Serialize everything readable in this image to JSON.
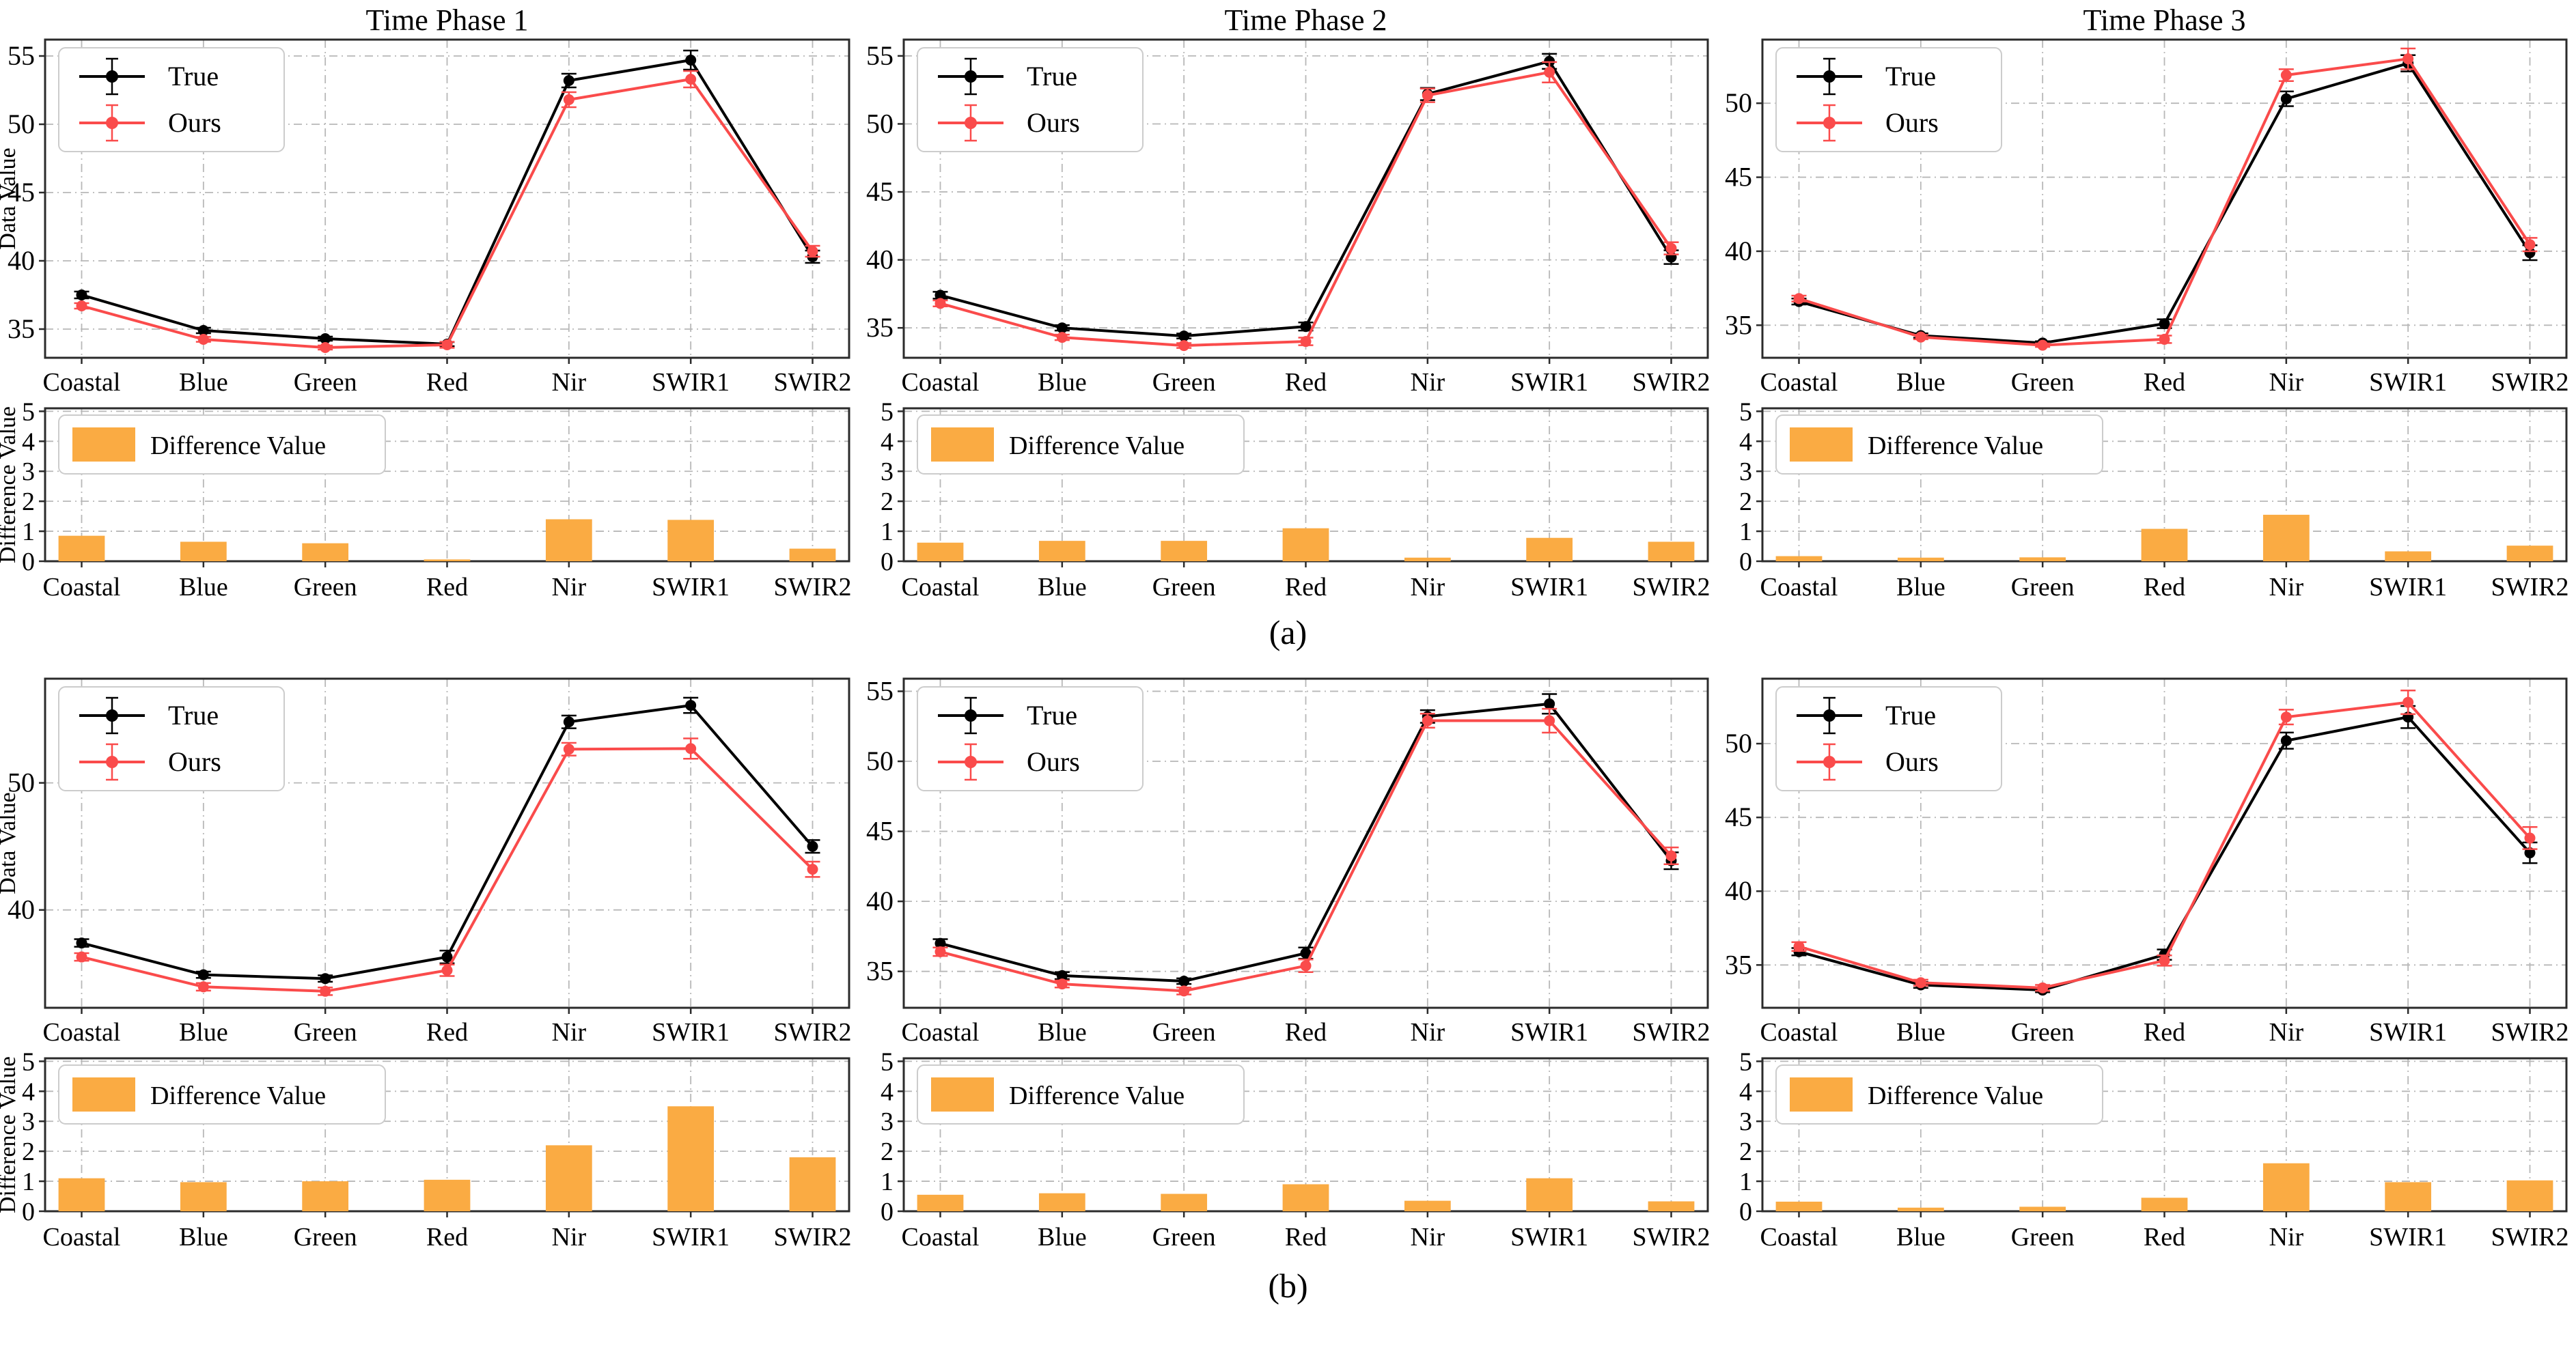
{
  "labels": {
    "data_value": "Data Value",
    "difference_value": "Difference Value",
    "legend_true": "True",
    "legend_ours": "Ours",
    "legend_diff": "Difference Value"
  },
  "colors": {
    "true_line": "#000000",
    "ours_line": "#fa4b4b",
    "bar": "#faab43",
    "grid": "#b8b8b8",
    "spine": "#2b2b2b"
  },
  "categories": [
    "Coastal",
    "Blue",
    "Green",
    "Red",
    "Nir",
    "SWIR1",
    "SWIR2"
  ],
  "chart_data": {
    "type": "multi-panel",
    "groups": [
      {
        "caption": "(a)",
        "panels": [
          {
            "title": "Time Phase 1",
            "line": {
              "type": "line",
              "ylim": [
                32.9,
                56.2
              ],
              "yticks": [
                35,
                40,
                45,
                50,
                55
              ],
              "series": [
                {
                  "name": "True",
                  "values": [
                    37.5,
                    34.9,
                    34.3,
                    33.9,
                    53.2,
                    54.7,
                    40.3
                  ],
                  "err": [
                    0.25,
                    0.2,
                    0.15,
                    0.15,
                    0.5,
                    0.7,
                    0.45
                  ]
                },
                {
                  "name": "Ours",
                  "values": [
                    36.7,
                    34.25,
                    33.65,
                    33.85,
                    51.8,
                    53.3,
                    40.7
                  ],
                  "err": [
                    0.2,
                    0.18,
                    0.15,
                    0.22,
                    0.55,
                    0.6,
                    0.4
                  ]
                }
              ]
            },
            "bar": {
              "type": "bar",
              "ylim": [
                0,
                5.1
              ],
              "yticks": [
                0,
                1,
                2,
                3,
                4,
                5
              ],
              "values": [
                0.85,
                0.65,
                0.6,
                0.06,
                1.4,
                1.38,
                0.42
              ]
            }
          },
          {
            "title": "Time Phase 2",
            "line": {
              "type": "line",
              "ylim": [
                32.8,
                56.2
              ],
              "yticks": [
                35,
                40,
                45,
                50,
                55
              ],
              "series": [
                {
                  "name": "True",
                  "values": [
                    37.4,
                    35.0,
                    34.4,
                    35.1,
                    52.2,
                    54.6,
                    40.2
                  ],
                  "err": [
                    0.25,
                    0.2,
                    0.18,
                    0.3,
                    0.45,
                    0.55,
                    0.5
                  ]
                },
                {
                  "name": "Ours",
                  "values": [
                    36.8,
                    34.3,
                    33.7,
                    34.0,
                    52.1,
                    53.8,
                    40.85
                  ],
                  "err": [
                    0.22,
                    0.2,
                    0.18,
                    0.28,
                    0.5,
                    0.75,
                    0.45
                  ]
                }
              ]
            },
            "bar": {
              "type": "bar",
              "ylim": [
                0,
                5.1
              ],
              "yticks": [
                0,
                1,
                2,
                3,
                4,
                5
              ],
              "values": [
                0.62,
                0.68,
                0.68,
                1.1,
                0.12,
                0.78,
                0.65
              ]
            }
          },
          {
            "title": "Time Phase 3",
            "line": {
              "type": "line",
              "ylim": [
                32.8,
                54.3
              ],
              "yticks": [
                35,
                40,
                45,
                50
              ],
              "series": [
                {
                  "name": "True",
                  "values": [
                    36.6,
                    34.3,
                    33.8,
                    35.1,
                    50.3,
                    52.7,
                    39.9
                  ],
                  "err": [
                    0.2,
                    0.15,
                    0.12,
                    0.3,
                    0.5,
                    0.55,
                    0.5
                  ]
                },
                {
                  "name": "Ours",
                  "values": [
                    36.8,
                    34.2,
                    33.65,
                    34.05,
                    51.9,
                    53.0,
                    40.45
                  ],
                  "err": [
                    0.2,
                    0.15,
                    0.12,
                    0.25,
                    0.4,
                    0.7,
                    0.45
                  ]
                }
              ]
            },
            "bar": {
              "type": "bar",
              "ylim": [
                0,
                5.1
              ],
              "yticks": [
                0,
                1,
                2,
                3,
                4,
                5
              ],
              "values": [
                0.17,
                0.12,
                0.13,
                1.08,
                1.55,
                0.33,
                0.52
              ]
            }
          }
        ]
      },
      {
        "caption": "(b)",
        "panels": [
          {
            "title": "",
            "line": {
              "type": "line",
              "ylim": [
                32.3,
                58.2
              ],
              "yticks": [
                40,
                50
              ],
              "series": [
                {
                  "name": "True",
                  "values": [
                    37.4,
                    34.9,
                    34.6,
                    36.3,
                    54.8,
                    56.1,
                    45.0
                  ],
                  "err": [
                    0.3,
                    0.25,
                    0.25,
                    0.5,
                    0.5,
                    0.6,
                    0.5
                  ]
                },
                {
                  "name": "Ours",
                  "values": [
                    36.3,
                    33.95,
                    33.6,
                    35.25,
                    52.65,
                    52.7,
                    43.2
                  ],
                  "err": [
                    0.3,
                    0.3,
                    0.3,
                    0.45,
                    0.5,
                    0.8,
                    0.6
                  ]
                }
              ]
            },
            "bar": {
              "type": "bar",
              "ylim": [
                0,
                5.1
              ],
              "yticks": [
                0,
                1,
                2,
                3,
                4,
                5
              ],
              "values": [
                1.1,
                0.97,
                1.0,
                1.05,
                2.2,
                3.5,
                1.8
              ]
            }
          },
          {
            "title": "",
            "line": {
              "type": "line",
              "ylim": [
                32.4,
                55.9
              ],
              "yticks": [
                35,
                40,
                45,
                50,
                55
              ],
              "series": [
                {
                  "name": "True",
                  "values": [
                    37.0,
                    34.7,
                    34.3,
                    36.3,
                    53.2,
                    54.1,
                    42.9
                  ],
                  "err": [
                    0.3,
                    0.25,
                    0.2,
                    0.4,
                    0.45,
                    0.7,
                    0.6
                  ]
                },
                {
                  "name": "Ours",
                  "values": [
                    36.4,
                    34.1,
                    33.6,
                    35.4,
                    52.9,
                    52.9,
                    43.25
                  ],
                  "err": [
                    0.3,
                    0.25,
                    0.25,
                    0.45,
                    0.5,
                    0.85,
                    0.6
                  ]
                }
              ]
            },
            "bar": {
              "type": "bar",
              "ylim": [
                0,
                5.1
              ],
              "yticks": [
                0,
                1,
                2,
                3,
                4,
                5
              ],
              "values": [
                0.55,
                0.6,
                0.58,
                0.9,
                0.35,
                1.1,
                0.33
              ]
            }
          },
          {
            "title": "",
            "line": {
              "type": "line",
              "ylim": [
                32.1,
                54.4
              ],
              "yticks": [
                35,
                40,
                45,
                50
              ],
              "series": [
                {
                  "name": "True",
                  "values": [
                    35.9,
                    33.65,
                    33.3,
                    35.7,
                    50.2,
                    51.8,
                    42.6
                  ],
                  "err": [
                    0.25,
                    0.2,
                    0.15,
                    0.35,
                    0.55,
                    0.75,
                    0.7
                  ]
                },
                {
                  "name": "Ours",
                  "values": [
                    36.25,
                    33.8,
                    33.45,
                    35.3,
                    51.8,
                    52.8,
                    43.6
                  ],
                  "err": [
                    0.3,
                    0.2,
                    0.2,
                    0.35,
                    0.5,
                    0.8,
                    0.75
                  ]
                }
              ]
            },
            "bar": {
              "type": "bar",
              "ylim": [
                0,
                5.1
              ],
              "yticks": [
                0,
                1,
                2,
                3,
                4,
                5
              ],
              "values": [
                0.32,
                0.12,
                0.15,
                0.45,
                1.6,
                0.97,
                1.03
              ]
            }
          }
        ]
      }
    ]
  }
}
